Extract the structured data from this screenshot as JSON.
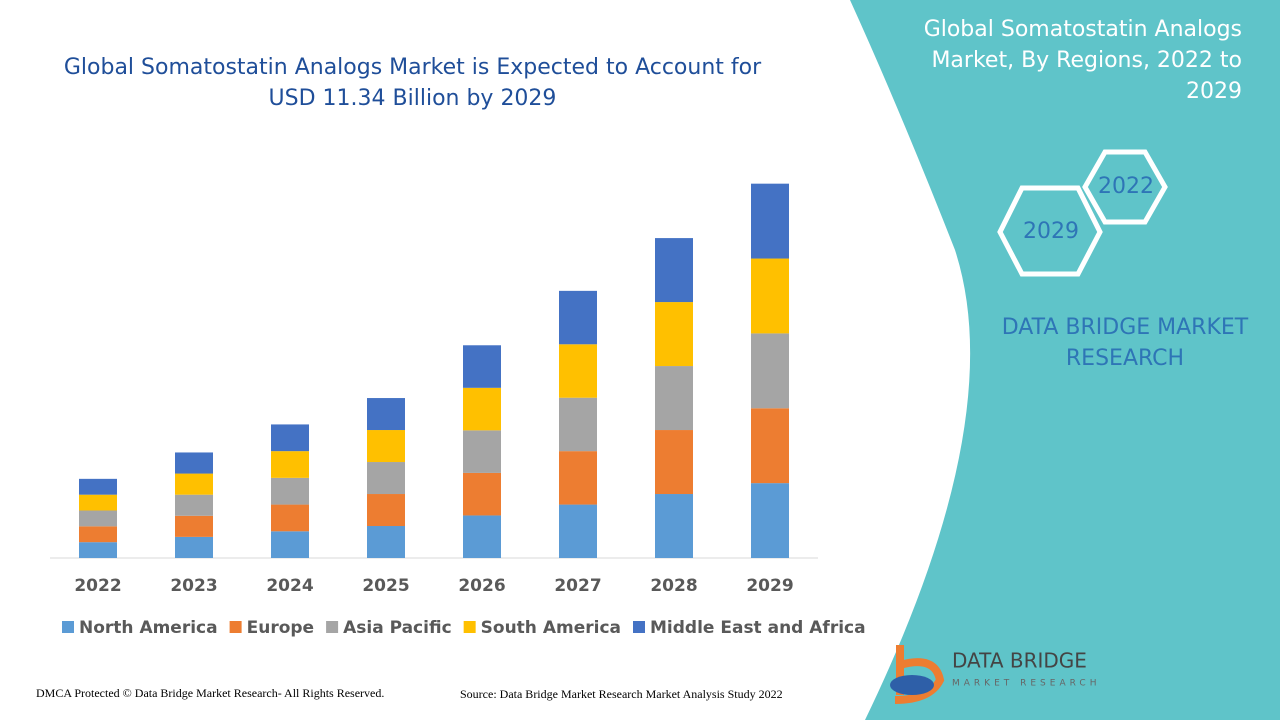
{
  "chart_data": {
    "type": "stacked-bar",
    "title": "Global Somatostatin Analogs Market is Expected to Account for USD 11.34 Billion by 2029",
    "categories": [
      "2022",
      "2023",
      "2024",
      "2025",
      "2026",
      "2027",
      "2028",
      "2029"
    ],
    "series": [
      {
        "name": "North America",
        "color": "#5b9bd5",
        "values": [
          0.48,
          0.64,
          0.81,
          0.97,
          1.29,
          1.62,
          1.94,
          2.27
        ]
      },
      {
        "name": "Europe",
        "color": "#ed7d31",
        "values": [
          0.48,
          0.64,
          0.81,
          0.97,
          1.29,
          1.62,
          1.94,
          2.27
        ]
      },
      {
        "name": "Asia Pacific",
        "color": "#a5a5a5",
        "values": [
          0.48,
          0.64,
          0.81,
          0.97,
          1.29,
          1.62,
          1.94,
          2.27
        ]
      },
      {
        "name": "South America",
        "color": "#ffc000",
        "values": [
          0.48,
          0.64,
          0.81,
          0.97,
          1.29,
          1.62,
          1.94,
          2.27
        ]
      },
      {
        "name": "Middle East and Africa",
        "color": "#4472c4",
        "values": [
          0.48,
          0.64,
          0.81,
          0.97,
          1.29,
          1.62,
          1.94,
          2.27
        ]
      }
    ],
    "ylim": [
      0,
      11.34
    ]
  },
  "panel": {
    "title": "Global Somatostatin Analogs Market, By Regions, 2022 to 2029",
    "hexagons": [
      "2022",
      "2029"
    ],
    "brand": "DATA BRIDGE MARKET RESEARCH"
  },
  "logo": {
    "name": "DATA BRIDGE",
    "tagline": "MARKET RESEARCH"
  },
  "footer": {
    "copyright": "DMCA Protected © Data Bridge Market Research- All Rights Reserved.",
    "source": "Source: Data Bridge Market Research Market Analysis Study 2022"
  }
}
